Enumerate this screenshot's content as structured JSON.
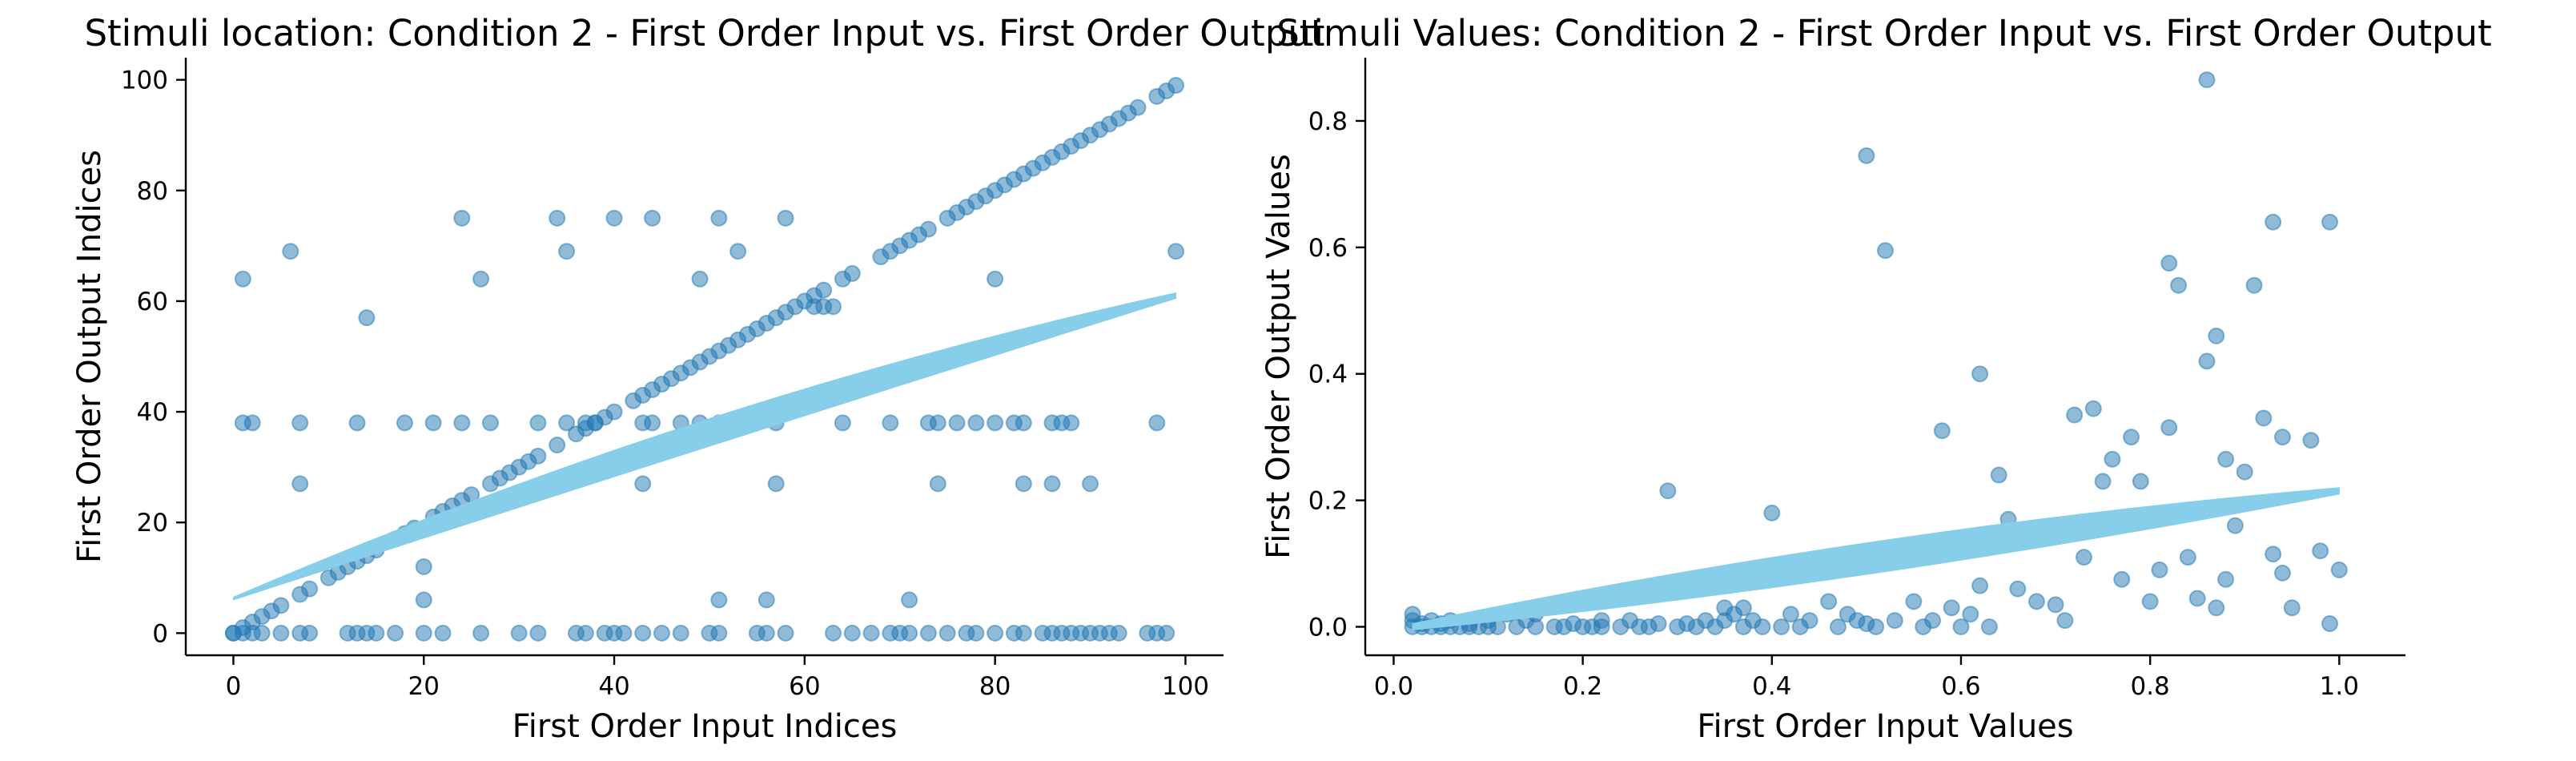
{
  "chart_data": [
    {
      "type": "scatter",
      "title": "Stimuli location: Condition 2 - First Order Input vs. First Order Output",
      "xlabel": "First Order Input Indices",
      "ylabel": "First Order Output Indices",
      "xlim": [
        -5,
        104
      ],
      "ylim": [
        -4,
        104
      ],
      "xticks": [
        0,
        20,
        40,
        60,
        80,
        100
      ],
      "yticks": [
        0,
        20,
        40,
        60,
        80,
        100
      ],
      "xtick_labels": [
        "0",
        "20",
        "40",
        "60",
        "80",
        "100"
      ],
      "ytick_labels": [
        "0",
        "20",
        "40",
        "60",
        "80",
        "100"
      ],
      "grid": false,
      "point_color": "#1f77b4",
      "band_color": "#87ceeb",
      "regression_band": {
        "x": [
          0,
          99
        ],
        "upper": [
          6.5,
          61.5
        ],
        "lower": [
          6.0,
          60.5
        ],
        "mid_upper": 38.5,
        "mid_lower": 33.5
      },
      "points": [
        [
          0,
          0
        ],
        [
          1,
          0
        ],
        [
          2,
          0
        ],
        [
          3,
          0
        ],
        [
          5,
          0
        ],
        [
          7,
          0
        ],
        [
          8,
          0
        ],
        [
          12,
          0
        ],
        [
          13,
          0
        ],
        [
          14,
          0
        ],
        [
          15,
          0
        ],
        [
          17,
          0
        ],
        [
          20,
          0
        ],
        [
          22,
          0
        ],
        [
          26,
          0
        ],
        [
          30,
          0
        ],
        [
          32,
          0
        ],
        [
          36,
          0
        ],
        [
          37,
          0
        ],
        [
          39,
          0
        ],
        [
          40,
          0
        ],
        [
          41,
          0
        ],
        [
          43,
          0
        ],
        [
          45,
          0
        ],
        [
          47,
          0
        ],
        [
          50,
          0
        ],
        [
          51,
          0
        ],
        [
          55,
          0
        ],
        [
          56,
          0
        ],
        [
          58,
          0
        ],
        [
          63,
          0
        ],
        [
          65,
          0
        ],
        [
          67,
          0
        ],
        [
          69,
          0
        ],
        [
          70,
          0
        ],
        [
          71,
          0
        ],
        [
          73,
          0
        ],
        [
          75,
          0
        ],
        [
          77,
          0
        ],
        [
          78,
          0
        ],
        [
          80,
          0
        ],
        [
          82,
          0
        ],
        [
          83,
          0
        ],
        [
          85,
          0
        ],
        [
          86,
          0
        ],
        [
          87,
          0
        ],
        [
          88,
          0
        ],
        [
          89,
          0
        ],
        [
          90,
          0
        ],
        [
          91,
          0
        ],
        [
          92,
          0
        ],
        [
          93,
          0
        ],
        [
          96,
          0
        ],
        [
          97,
          0
        ],
        [
          98,
          0
        ],
        [
          1,
          38
        ],
        [
          2,
          38
        ],
        [
          7,
          38
        ],
        [
          13,
          38
        ],
        [
          18,
          38
        ],
        [
          21,
          38
        ],
        [
          24,
          38
        ],
        [
          27,
          38
        ],
        [
          32,
          38
        ],
        [
          35,
          38
        ],
        [
          37,
          38
        ],
        [
          38,
          38
        ],
        [
          43,
          38
        ],
        [
          44,
          38
        ],
        [
          47,
          38
        ],
        [
          49,
          38
        ],
        [
          51,
          38
        ],
        [
          52,
          38
        ],
        [
          54,
          38
        ],
        [
          57,
          38
        ],
        [
          64,
          38
        ],
        [
          69,
          38
        ],
        [
          73,
          38
        ],
        [
          74,
          38
        ],
        [
          76,
          38
        ],
        [
          78,
          38
        ],
        [
          80,
          38
        ],
        [
          82,
          38
        ],
        [
          83,
          38
        ],
        [
          86,
          38
        ],
        [
          87,
          38
        ],
        [
          88,
          38
        ],
        [
          97,
          38
        ],
        [
          1,
          64
        ],
        [
          6,
          69
        ],
        [
          7,
          27
        ],
        [
          14,
          57
        ],
        [
          20,
          12
        ],
        [
          20,
          6
        ],
        [
          24,
          75
        ],
        [
          26,
          64
        ],
        [
          34,
          75
        ],
        [
          35,
          69
        ],
        [
          40,
          75
        ],
        [
          43,
          27
        ],
        [
          44,
          75
        ],
        [
          49,
          64
        ],
        [
          51,
          75
        ],
        [
          51,
          6
        ],
        [
          53,
          69
        ],
        [
          56,
          6
        ],
        [
          57,
          27
        ],
        [
          58,
          75
        ],
        [
          71,
          6
        ],
        [
          74,
          27
        ],
        [
          80,
          64
        ],
        [
          83,
          27
        ],
        [
          86,
          27
        ],
        [
          90,
          27
        ],
        [
          99,
          69
        ],
        [
          61,
          59
        ],
        [
          62,
          59
        ],
        [
          63,
          59
        ],
        [
          0,
          0
        ],
        [
          1,
          1
        ],
        [
          2,
          2
        ],
        [
          3,
          3
        ],
        [
          4,
          4
        ],
        [
          5,
          5
        ],
        [
          7,
          7
        ],
        [
          8,
          8
        ],
        [
          10,
          10
        ],
        [
          11,
          11
        ],
        [
          12,
          12
        ],
        [
          13,
          13
        ],
        [
          14,
          14
        ],
        [
          15,
          15
        ],
        [
          17,
          17
        ],
        [
          18,
          18
        ],
        [
          19,
          19
        ],
        [
          21,
          21
        ],
        [
          22,
          22
        ],
        [
          23,
          23
        ],
        [
          24,
          24
        ],
        [
          25,
          25
        ],
        [
          27,
          27
        ],
        [
          28,
          28
        ],
        [
          29,
          29
        ],
        [
          30,
          30
        ],
        [
          31,
          31
        ],
        [
          32,
          32
        ],
        [
          34,
          34
        ],
        [
          36,
          36
        ],
        [
          37,
          37
        ],
        [
          38,
          38
        ],
        [
          39,
          39
        ],
        [
          40,
          40
        ],
        [
          42,
          42
        ],
        [
          43,
          43
        ],
        [
          44,
          44
        ],
        [
          45,
          45
        ],
        [
          46,
          46
        ],
        [
          47,
          47
        ],
        [
          48,
          48
        ],
        [
          49,
          49
        ],
        [
          50,
          50
        ],
        [
          51,
          51
        ],
        [
          52,
          52
        ],
        [
          53,
          53
        ],
        [
          54,
          54
        ],
        [
          55,
          55
        ],
        [
          56,
          56
        ],
        [
          57,
          57
        ],
        [
          58,
          58
        ],
        [
          59,
          59
        ],
        [
          60,
          60
        ],
        [
          61,
          61
        ],
        [
          62,
          62
        ],
        [
          64,
          64
        ],
        [
          65,
          65
        ],
        [
          68,
          68
        ],
        [
          69,
          69
        ],
        [
          70,
          70
        ],
        [
          71,
          71
        ],
        [
          72,
          72
        ],
        [
          73,
          73
        ],
        [
          75,
          75
        ],
        [
          76,
          76
        ],
        [
          77,
          77
        ],
        [
          78,
          78
        ],
        [
          79,
          79
        ],
        [
          80,
          80
        ],
        [
          81,
          81
        ],
        [
          82,
          82
        ],
        [
          83,
          83
        ],
        [
          84,
          84
        ],
        [
          85,
          85
        ],
        [
          86,
          86
        ],
        [
          87,
          87
        ],
        [
          88,
          88
        ],
        [
          89,
          89
        ],
        [
          90,
          90
        ],
        [
          91,
          91
        ],
        [
          92,
          92
        ],
        [
          93,
          93
        ],
        [
          94,
          94
        ],
        [
          95,
          95
        ],
        [
          97,
          97
        ],
        [
          98,
          98
        ],
        [
          99,
          99
        ]
      ]
    },
    {
      "type": "scatter",
      "title": "Stimuli Values: Condition 2 - First Order Input vs. First Order Output",
      "xlabel": "First Order Input Values",
      "ylabel": "First Order Output Values",
      "xlim": [
        -0.03,
        1.07
      ],
      "ylim": [
        -0.045,
        0.9
      ],
      "xticks": [
        0.0,
        0.2,
        0.4,
        0.6,
        0.8,
        1.0
      ],
      "yticks": [
        0.0,
        0.2,
        0.4,
        0.6,
        0.8
      ],
      "xtick_labels": [
        "0.0",
        "0.2",
        "0.4",
        "0.6",
        "0.8",
        "1.0"
      ],
      "ytick_labels": [
        "0.0",
        "0.2",
        "0.4",
        "0.6",
        "0.8"
      ],
      "grid": false,
      "point_color": "#1f77b4",
      "band_color": "#87ceeb",
      "regression_band": {
        "x": [
          0.02,
          1.0
        ],
        "upper": [
          0.005,
          0.22
        ],
        "lower": [
          -0.005,
          0.21
        ],
        "mid_upper": 0.135,
        "mid_lower": 0.085
      },
      "points": [
        [
          0.02,
          0.0
        ],
        [
          0.02,
          0.01
        ],
        [
          0.02,
          0.02
        ],
        [
          0.03,
          0.0
        ],
        [
          0.03,
          0.005
        ],
        [
          0.04,
          0.0
        ],
        [
          0.04,
          0.01
        ],
        [
          0.05,
          0.0
        ],
        [
          0.05,
          0.005
        ],
        [
          0.06,
          0.0
        ],
        [
          0.06,
          0.01
        ],
        [
          0.07,
          0.0
        ],
        [
          0.08,
          0.0
        ],
        [
          0.08,
          0.005
        ],
        [
          0.09,
          0.0
        ],
        [
          0.1,
          0.0
        ],
        [
          0.1,
          0.01
        ],
        [
          0.11,
          0.0
        ],
        [
          0.12,
          0.02
        ],
        [
          0.13,
          0.0
        ],
        [
          0.14,
          0.01
        ],
        [
          0.15,
          0.0
        ],
        [
          0.15,
          0.02
        ],
        [
          0.17,
          0.0
        ],
        [
          0.18,
          0.0
        ],
        [
          0.19,
          0.005
        ],
        [
          0.2,
          0.0
        ],
        [
          0.21,
          0.0
        ],
        [
          0.22,
          0.0
        ],
        [
          0.22,
          0.01
        ],
        [
          0.23,
          0.05
        ],
        [
          0.24,
          0.0
        ],
        [
          0.25,
          0.01
        ],
        [
          0.26,
          0.0
        ],
        [
          0.27,
          0.0
        ],
        [
          0.28,
          0.005
        ],
        [
          0.29,
          0.215
        ],
        [
          0.3,
          0.0
        ],
        [
          0.31,
          0.005
        ],
        [
          0.32,
          0.0
        ],
        [
          0.33,
          0.01
        ],
        [
          0.34,
          0.0
        ],
        [
          0.35,
          0.01
        ],
        [
          0.35,
          0.03
        ],
        [
          0.36,
          0.02
        ],
        [
          0.37,
          0.0
        ],
        [
          0.37,
          0.03
        ],
        [
          0.38,
          0.01
        ],
        [
          0.39,
          0.0
        ],
        [
          0.4,
          0.18
        ],
        [
          0.41,
          0.0
        ],
        [
          0.42,
          0.02
        ],
        [
          0.43,
          0.0
        ],
        [
          0.44,
          0.01
        ],
        [
          0.45,
          0.1
        ],
        [
          0.46,
          0.04
        ],
        [
          0.47,
          0.0
        ],
        [
          0.48,
          0.02
        ],
        [
          0.49,
          0.01
        ],
        [
          0.5,
          0.745
        ],
        [
          0.5,
          0.005
        ],
        [
          0.51,
          0.0
        ],
        [
          0.52,
          0.595
        ],
        [
          0.53,
          0.01
        ],
        [
          0.55,
          0.04
        ],
        [
          0.56,
          0.0
        ],
        [
          0.57,
          0.01
        ],
        [
          0.58,
          0.31
        ],
        [
          0.59,
          0.03
        ],
        [
          0.6,
          0.0
        ],
        [
          0.61,
          0.02
        ],
        [
          0.62,
          0.4
        ],
        [
          0.62,
          0.065
        ],
        [
          0.63,
          0.0
        ],
        [
          0.64,
          0.24
        ],
        [
          0.65,
          0.17
        ],
        [
          0.66,
          0.06
        ],
        [
          0.67,
          0.14
        ],
        [
          0.68,
          0.04
        ],
        [
          0.7,
          0.035
        ],
        [
          0.71,
          0.01
        ],
        [
          0.72,
          0.335
        ],
        [
          0.73,
          0.11
        ],
        [
          0.74,
          0.345
        ],
        [
          0.75,
          0.16
        ],
        [
          0.75,
          0.23
        ],
        [
          0.76,
          0.265
        ],
        [
          0.77,
          0.075
        ],
        [
          0.78,
          0.3
        ],
        [
          0.79,
          0.23
        ],
        [
          0.8,
          0.04
        ],
        [
          0.81,
          0.09
        ],
        [
          0.82,
          0.575
        ],
        [
          0.82,
          0.315
        ],
        [
          0.83,
          0.54
        ],
        [
          0.84,
          0.11
        ],
        [
          0.85,
          0.045
        ],
        [
          0.86,
          0.865
        ],
        [
          0.86,
          0.42
        ],
        [
          0.87,
          0.46
        ],
        [
          0.87,
          0.03
        ],
        [
          0.88,
          0.265
        ],
        [
          0.88,
          0.075
        ],
        [
          0.89,
          0.16
        ],
        [
          0.9,
          0.245
        ],
        [
          0.91,
          0.54
        ],
        [
          0.92,
          0.33
        ],
        [
          0.93,
          0.64
        ],
        [
          0.93,
          0.115
        ],
        [
          0.94,
          0.3
        ],
        [
          0.94,
          0.085
        ],
        [
          0.95,
          0.03
        ],
        [
          0.97,
          0.295
        ],
        [
          0.98,
          0.12
        ],
        [
          0.99,
          0.64
        ],
        [
          0.99,
          0.005
        ],
        [
          1.0,
          0.09
        ]
      ]
    }
  ]
}
